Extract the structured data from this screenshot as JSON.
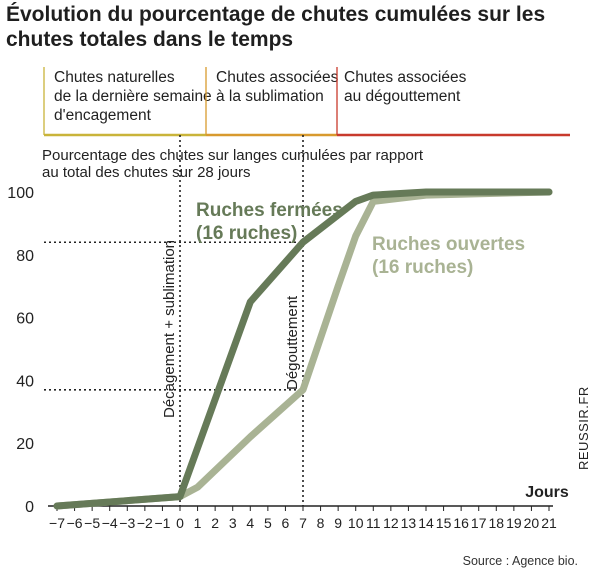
{
  "title": "Évolution du pourcentage de chutes cumulées sur les chutes totales dans le temps",
  "phases": [
    {
      "label": "Chutes naturelles\nde la dernière semaine\nd'encagement",
      "color": "#c9b43a"
    },
    {
      "label": "Chutes associées\nà la sublimation",
      "color": "#d89a2e"
    },
    {
      "label": "Chutes associées\nau dégouttement",
      "color": "#c83a2c"
    }
  ],
  "subtitle": "Pourcentage des chutes sur langes cumulées par rapport\nau total des chutes sur 28 jours",
  "source": "Source : Agence bio.",
  "credit": "REUSSIR.FR",
  "chart_data": {
    "type": "line",
    "title": "Évolution du pourcentage de chutes cumulées sur les chutes totales dans le temps",
    "xlabel": "Jours",
    "ylabel": "Pourcentage des chutes sur langes cumulées par rapport au total des chutes sur 28 jours",
    "x_ticks": [
      -7,
      -6,
      -5,
      -4,
      -3,
      -2,
      -1,
      0,
      1,
      2,
      3,
      4,
      5,
      6,
      7,
      8,
      9,
      10,
      11,
      12,
      13,
      14,
      15,
      16,
      17,
      18,
      19,
      20,
      21
    ],
    "xlim": [
      -7,
      21
    ],
    "y_ticks": [
      0,
      20,
      40,
      60,
      80,
      100
    ],
    "ylim": [
      0,
      100
    ],
    "series": [
      {
        "name": "Ruches fermées\n(16 ruches)",
        "color": "#667a58",
        "x": [
          -7,
          0,
          4,
          7,
          10,
          11,
          14,
          21
        ],
        "y": [
          0,
          3,
          65,
          84,
          97,
          99,
          100,
          100
        ]
      },
      {
        "name": "Ruches ouvertes\n(16 ruches)",
        "color": "#a9b394",
        "x": [
          -7,
          0,
          1,
          4,
          7,
          9,
          10,
          11,
          14,
          21
        ],
        "y": [
          0,
          3,
          6,
          22,
          37,
          70,
          86,
          97,
          99,
          100
        ]
      }
    ],
    "annotations": [
      {
        "text": "Décagement + sublimation",
        "x": 0
      },
      {
        "text": "Dégouttement",
        "x": 7
      }
    ],
    "reference_lines": [
      84,
      37
    ]
  }
}
